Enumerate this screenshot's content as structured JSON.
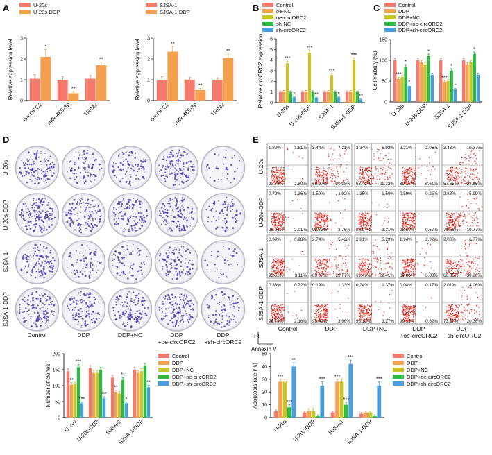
{
  "colors": {
    "control": "#f47a6d",
    "ddp": "#f5a04e",
    "ddp_nc": "#c8c42c",
    "oe": "#2fb844",
    "sh": "#4a9ee0",
    "dot": "#e8231a",
    "dish": "#4a3fb2"
  },
  "panels": {
    "A": "A",
    "B": "B",
    "C": "C",
    "D": "D",
    "E": "E"
  },
  "chart_data": [
    {
      "id": "A1",
      "type": "bar",
      "panel": "A",
      "ylabel": "Relative expression level",
      "categories": [
        "circORC2",
        "miR-485-3p",
        "TRIM2"
      ],
      "series": [
        {
          "name": "U-20s",
          "color_key": "control",
          "values": [
            1.05,
            1.0,
            1.05
          ],
          "err": [
            0.2,
            0.15,
            0.15
          ]
        },
        {
          "name": "U-20s-DDP",
          "color_key": "ddp",
          "values": [
            2.1,
            0.35,
            1.7
          ],
          "err": [
            0.35,
            0.08,
            0.15
          ]
        }
      ],
      "ylim": [
        0,
        3
      ],
      "yticks": [
        0,
        1,
        2,
        3
      ],
      "sig": [
        {
          "cat": 0,
          "ser": 1,
          "label": "*"
        },
        {
          "cat": 1,
          "ser": 1,
          "label": "**"
        },
        {
          "cat": 2,
          "ser": 1,
          "label": "**"
        }
      ]
    },
    {
      "id": "A2",
      "type": "bar",
      "panel": "A",
      "ylabel": "Relative expression level",
      "categories": [
        "circORC2",
        "miR-485-3p",
        "TRIM2"
      ],
      "series": [
        {
          "name": "SJSA-1",
          "color_key": "control",
          "values": [
            1.0,
            1.0,
            1.0
          ],
          "err": [
            0.15,
            0.12,
            0.1
          ]
        },
        {
          "name": "SJSA-1-DDP",
          "color_key": "ddp",
          "values": [
            2.35,
            0.5,
            2.05
          ],
          "err": [
            0.25,
            0.08,
            0.2
          ]
        }
      ],
      "ylim": [
        0,
        3
      ],
      "yticks": [
        0,
        1,
        2,
        3
      ],
      "sig": [
        {
          "cat": 0,
          "ser": 1,
          "label": "**"
        },
        {
          "cat": 1,
          "ser": 1,
          "label": "**"
        },
        {
          "cat": 2,
          "ser": 1,
          "label": "**"
        }
      ]
    },
    {
      "id": "B",
      "type": "bar",
      "panel": "B",
      "ylabel": "Relative circORC2 expression",
      "categories": [
        "U-20s",
        "U-20s-DDP",
        "SJSA-1",
        "SJSA-1-DDP"
      ],
      "series": [
        {
          "name": "Control",
          "color_key": "control",
          "values": [
            1.0,
            1.0,
            1.0,
            1.0
          ],
          "err": [
            0.1,
            0.1,
            0.1,
            0.1
          ]
        },
        {
          "name": "oe-NC",
          "color_key": "ddp",
          "values": [
            1.05,
            1.05,
            1.05,
            1.05
          ],
          "err": [
            0.1,
            0.1,
            0.1,
            0.1
          ]
        },
        {
          "name": "oe-circORC2",
          "color_key": "ddp_nc",
          "values": [
            3.7,
            4.7,
            2.6,
            4.0
          ],
          "err": [
            0.2,
            0.2,
            0.15,
            0.2
          ]
        },
        {
          "name": "sh-NC",
          "color_key": "oe",
          "values": [
            1.0,
            1.0,
            1.0,
            1.0
          ],
          "err": [
            0.1,
            0.1,
            0.1,
            0.1
          ]
        },
        {
          "name": "sh-circORC2",
          "color_key": "sh",
          "values": [
            0.5,
            0.45,
            0.5,
            0.3
          ],
          "err": [
            0.05,
            0.05,
            0.05,
            0.05
          ]
        }
      ],
      "ylim": [
        0,
        6
      ],
      "yticks": [
        0,
        1,
        2,
        3,
        4,
        5,
        6
      ],
      "sig": [
        {
          "cat": 0,
          "ser": 2,
          "label": "***"
        },
        {
          "cat": 0,
          "ser": 4,
          "label": "*"
        },
        {
          "cat": 1,
          "ser": 2,
          "label": "***"
        },
        {
          "cat": 1,
          "ser": 4,
          "label": "**"
        },
        {
          "cat": 2,
          "ser": 2,
          "label": "***"
        },
        {
          "cat": 2,
          "ser": 4,
          "label": "*"
        },
        {
          "cat": 3,
          "ser": 2,
          "label": "***"
        },
        {
          "cat": 3,
          "ser": 4,
          "label": "**"
        }
      ]
    },
    {
      "id": "C",
      "type": "bar",
      "panel": "C",
      "ylabel": "Cell viability (%)",
      "categories": [
        "U-20s",
        "U-20s-DDP",
        "SJSA-1",
        "SJSA-1-DDP"
      ],
      "series": [
        {
          "name": "Control",
          "color_key": "control",
          "values": [
            100,
            100,
            100,
            100
          ],
          "err": [
            5,
            5,
            5,
            5
          ]
        },
        {
          "name": "DDP",
          "color_key": "ddp",
          "values": [
            55,
            95,
            48,
            90
          ],
          "err": [
            4,
            5,
            4,
            5
          ]
        },
        {
          "name": "DDP+NC",
          "color_key": "ddp_nc",
          "values": [
            60,
            90,
            50,
            95
          ],
          "err": [
            4,
            5,
            4,
            5
          ]
        },
        {
          "name": "DDP+oe-circORC2",
          "color_key": "oe",
          "values": [
            85,
            110,
            75,
            115
          ],
          "err": [
            5,
            5,
            5,
            5
          ]
        },
        {
          "name": "DDP+sh-circORC2",
          "color_key": "sh",
          "values": [
            38,
            65,
            30,
            65
          ],
          "err": [
            3,
            4,
            3,
            4
          ]
        }
      ],
      "ylim": [
        0,
        150
      ],
      "yticks": [
        0,
        50,
        100,
        150
      ],
      "sig": [
        {
          "cat": 0,
          "ser": 1,
          "label": "***"
        },
        {
          "cat": 0,
          "ser": 3,
          "label": "*"
        },
        {
          "cat": 0,
          "ser": 4,
          "label": "*"
        },
        {
          "cat": 1,
          "ser": 3,
          "label": "*"
        },
        {
          "cat": 2,
          "ser": 1,
          "label": "***"
        },
        {
          "cat": 2,
          "ser": 3,
          "label": "*"
        },
        {
          "cat": 2,
          "ser": 4,
          "label": "*"
        },
        {
          "cat": 3,
          "ser": 3,
          "label": "*"
        }
      ]
    },
    {
      "id": "D2",
      "type": "bar",
      "panel": "D",
      "ylabel": "Number of clones",
      "categories": [
        "U-20s",
        "U-20s-DDP",
        "SJSA-1",
        "SJSA-1-DDP"
      ],
      "series": [
        {
          "name": "Control",
          "color_key": "control",
          "values": [
            145,
            155,
            125,
            150
          ],
          "err": [
            8,
            8,
            8,
            8
          ]
        },
        {
          "name": "DDP",
          "color_key": "ddp",
          "values": [
            103,
            140,
            80,
            140
          ],
          "err": [
            6,
            8,
            6,
            8
          ]
        },
        {
          "name": "DDP+NC",
          "color_key": "ddp_nc",
          "values": [
            105,
            140,
            75,
            145
          ],
          "err": [
            6,
            8,
            6,
            8
          ]
        },
        {
          "name": "DDP+oe-circORC2",
          "color_key": "oe",
          "values": [
            158,
            150,
            118,
            162
          ],
          "err": [
            8,
            8,
            8,
            8
          ]
        },
        {
          "name": "DDP+sh-circORC2",
          "color_key": "sh",
          "values": [
            45,
            60,
            45,
            95
          ],
          "err": [
            4,
            5,
            4,
            6
          ]
        }
      ],
      "ylim": [
        0,
        200
      ],
      "yticks": [
        0,
        50,
        100,
        150,
        200
      ],
      "sig": [
        {
          "cat": 0,
          "ser": 1,
          "label": "**"
        },
        {
          "cat": 0,
          "ser": 3,
          "label": "***"
        },
        {
          "cat": 0,
          "ser": 4,
          "label": "***"
        },
        {
          "cat": 1,
          "ser": 4,
          "label": "***"
        },
        {
          "cat": 2,
          "ser": 1,
          "label": "**"
        },
        {
          "cat": 2,
          "ser": 3,
          "label": "**"
        },
        {
          "cat": 2,
          "ser": 4,
          "label": "*"
        },
        {
          "cat": 3,
          "ser": 4,
          "label": "**"
        }
      ]
    },
    {
      "id": "E2",
      "type": "bar",
      "panel": "E",
      "ylabel": "Apoptosis rate (%)",
      "categories": [
        "U-20s",
        "U-20s-DDP",
        "SJSA-1",
        "SJSA-1-DDP"
      ],
      "series": [
        {
          "name": "Control",
          "color_key": "control",
          "values": [
            5,
            4,
            4,
            3
          ],
          "err": [
            1,
            1,
            1,
            1
          ]
        },
        {
          "name": "DDP",
          "color_key": "ddp",
          "values": [
            28,
            5,
            28,
            4
          ],
          "err": [
            2,
            2,
            2,
            1
          ]
        },
        {
          "name": "DDP+NC",
          "color_key": "ddp_nc",
          "values": [
            28,
            5,
            28,
            4
          ],
          "err": [
            2,
            2,
            2,
            1
          ]
        },
        {
          "name": "DDP+oe-circORC2",
          "color_key": "oe",
          "values": [
            8,
            1,
            10,
            1
          ],
          "err": [
            2,
            1,
            2,
            1
          ]
        },
        {
          "name": "DDP+sh-circORC2",
          "color_key": "sh",
          "values": [
            40,
            25,
            42,
            25
          ],
          "err": [
            3,
            3,
            3,
            3
          ]
        }
      ],
      "ylim": [
        0,
        50
      ],
      "yticks": [
        0,
        10,
        20,
        30,
        40,
        50
      ],
      "sig": [
        {
          "cat": 0,
          "ser": 1,
          "label": "***"
        },
        {
          "cat": 0,
          "ser": 3,
          "label": "***"
        },
        {
          "cat": 0,
          "ser": 4,
          "label": "**"
        },
        {
          "cat": 1,
          "ser": 4,
          "label": "***"
        },
        {
          "cat": 2,
          "ser": 1,
          "label": "***"
        },
        {
          "cat": 2,
          "ser": 3,
          "label": "***"
        },
        {
          "cat": 2,
          "ser": 4,
          "label": "***"
        },
        {
          "cat": 3,
          "ser": 4,
          "label": "***"
        }
      ]
    }
  ],
  "legendA1": [
    "U-20s",
    "U-20s-DDP"
  ],
  "legendA2": [
    "SJSA-1",
    "SJSA-1-DDP"
  ],
  "legendB": [
    "Control",
    "oe-NC",
    "oe-circORC2",
    "sh-NC",
    "sh-circORC2"
  ],
  "legendC": [
    "Control",
    "DDP",
    "DDP+NC",
    "DDP+oe-circORC2",
    "DDP+sh-circORC2"
  ],
  "plates": {
    "rows": [
      "U-20s",
      "U-20s-DDP",
      "SJSA-1",
      "SJSA-1-DDP"
    ],
    "cols": [
      "Control",
      "DDP",
      "DDP+NC",
      "DDP\n+oe-circORC2",
      "DDP\n+sh-circORC2"
    ],
    "density": [
      [
        0.7,
        0.5,
        0.5,
        0.8,
        0.2
      ],
      [
        0.8,
        0.7,
        0.7,
        0.8,
        0.4
      ],
      [
        0.6,
        0.4,
        0.4,
        0.6,
        0.2
      ],
      [
        0.8,
        0.7,
        0.7,
        0.8,
        0.5
      ]
    ]
  },
  "flow": {
    "rows": [
      "U-20s",
      "U-20s-DDP",
      "SJSA-1",
      "SJSA-1-DDP"
    ],
    "cols": [
      "Control",
      "DDP",
      "DDP+NC",
      "DDP\n+oe-circORC2",
      "DDP\n+sh-circORC2"
    ],
    "xaxis": "Annexin V",
    "yaxis": "PI",
    "quads": [
      [
        [
          "1.80%",
          "1.61%",
          "93.79%",
          "2.80%"
        ],
        [
          "3.44%",
          "7.21%",
          "68.97%",
          "20.38%"
        ],
        [
          "3.34%",
          "6.92%",
          "68.42%",
          "21.32%"
        ],
        [
          "2.21%",
          "2.06%",
          "89.12%",
          "6.61%"
        ],
        [
          "3.43%",
          "10.37%",
          "57.65%",
          "28.55%"
        ]
      ],
      [
        [
          "0.72%",
          "1.36%",
          "95.91%",
          "2.01%"
        ],
        [
          "1.59%",
          "1.92%",
          "92.73%",
          "3.76%"
        ],
        [
          "1.35%",
          "1.50%",
          "93.94%",
          "3.21%"
        ],
        [
          "0.59%",
          "0.25%",
          "98.59%",
          "0.57%"
        ],
        [
          "2.68%",
          "5.99%",
          "71.56%",
          "19.77%"
        ]
      ],
      [
        [
          "0.39%",
          "0.98%",
          "95.52%",
          "3.11%"
        ],
        [
          "2.74%",
          "5.42%",
          "69.07%",
          "22.77%"
        ],
        [
          "2.81%",
          "5.29%",
          "69.49%",
          "22.41%"
        ],
        [
          "1.94%",
          "2.92%",
          "89.06%",
          "6.08%"
        ],
        [
          "2.00%",
          "6.77%",
          "60.35%",
          "30.88%"
        ]
      ],
      [
        [
          "0.33%",
          "0.72%",
          "96.79%",
          "2.16%"
        ],
        [
          "0.19%",
          "1.33%",
          "95.42%",
          "3.06%"
        ],
        [
          "0.24%",
          "1.37%",
          "95.12%",
          "3.27%"
        ],
        [
          "0.08%",
          "0.17%",
          "99.13%",
          "0.62%"
        ],
        [
          "2.01%",
          "4.06%",
          "73.57%",
          "20.36%"
        ]
      ]
    ]
  }
}
